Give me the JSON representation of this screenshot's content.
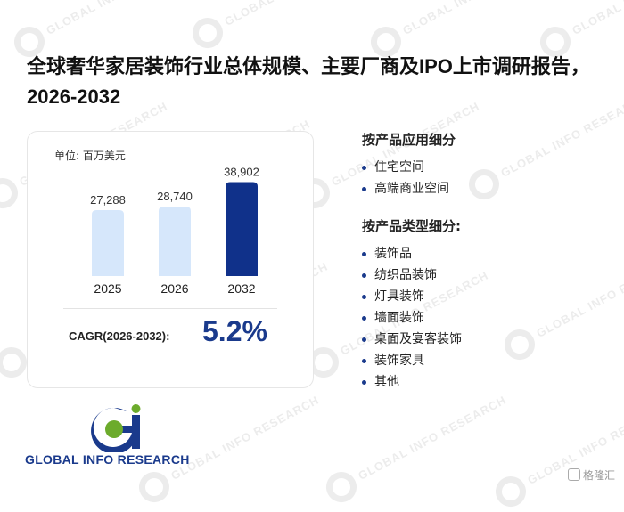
{
  "title": "全球奢华家居装饰行业总体规模、主要厂商及IPO上市调研报告，2026-2032",
  "unit_label": "单位: 百万美元",
  "chart_data": {
    "type": "bar",
    "categories": [
      "2025",
      "2026",
      "2032"
    ],
    "values": [
      27288,
      28740,
      38902
    ],
    "value_labels": [
      "27,288",
      "28,740",
      "38,902"
    ],
    "colors": [
      "#d6e7fb",
      "#d6e7fb",
      "#10318a"
    ],
    "ylim": [
      0,
      45000
    ]
  },
  "cagr": {
    "label": "CAGR(2026-2032):",
    "value": "5.2%"
  },
  "segments": [
    {
      "heading": "按产品应用细分",
      "items": [
        "住宅空间",
        "高端商业空间"
      ]
    },
    {
      "heading": "按产品类型细分:",
      "items": [
        "装饰品",
        "纺织品装饰",
        "灯具装饰",
        "墙面装饰",
        "桌面及宴客装饰",
        "装饰家具",
        "其他"
      ]
    }
  ],
  "logo": {
    "text": "GLOBAL INFO RESEARCH",
    "mark_icon": "gi-logo-icon"
  },
  "watermark": {
    "text": "GLOBAL INFO RESEARCH"
  },
  "corner_brand": {
    "text": "格隆汇",
    "icon": "glh-logo-icon"
  }
}
